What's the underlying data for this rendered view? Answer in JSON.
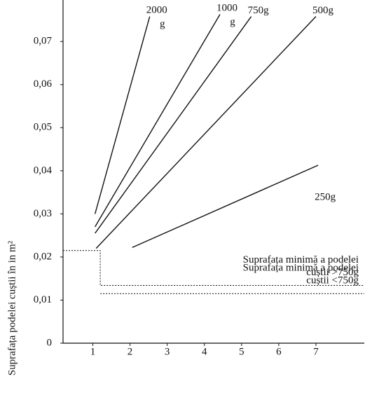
{
  "chart_data": {
    "type": "line",
    "y_label": "Suprafața podelei cuștii în in m²",
    "xlim": [
      0.2,
      8.3
    ],
    "xticks": [
      1,
      2,
      3,
      4,
      5,
      6,
      7
    ],
    "ylim": [
      0,
      0.078
    ],
    "yticks": [
      {
        "value": 0,
        "label": "0"
      },
      {
        "value": 0.01,
        "label": "0,01"
      },
      {
        "value": 0.02,
        "label": "0,02"
      },
      {
        "value": 0.03,
        "label": "0,03"
      },
      {
        "value": 0.04,
        "label": "0,04"
      },
      {
        "value": 0.05,
        "label": "0,05"
      },
      {
        "value": 0.06,
        "label": "0,06"
      },
      {
        "value": 0.07,
        "label": "0,07"
      }
    ],
    "color": "#111111",
    "series": [
      {
        "name": "2000 g",
        "x": [
          1.06,
          2.53
        ],
        "y": [
          0.03,
          0.0758
        ]
      },
      {
        "name": "1000 g",
        "x": [
          1.06,
          4.42
        ],
        "y": [
          0.027,
          0.0763
        ]
      },
      {
        "name": "750g",
        "x": [
          1.06,
          5.26
        ],
        "y": [
          0.0255,
          0.0758
        ]
      },
      {
        "name": "500g",
        "x": [
          1.09,
          7.0
        ],
        "y": [
          0.022,
          0.0758
        ]
      },
      {
        "name": "250g",
        "x": [
          2.06,
          7.06
        ],
        "y": [
          0.0222,
          0.0413
        ]
      }
    ],
    "reference_lines": [
      {
        "x": [
          0.2,
          1.2,
          1.2,
          8.3
        ],
        "y": [
          0.0215,
          0.0215,
          0.0134,
          0.0134
        ],
        "text": [
          "Suprafața minimă a podelei",
          "cuștii >750g"
        ]
      },
      {
        "x": [
          1.2,
          8.3
        ],
        "y": [
          0.0115,
          0.0115
        ],
        "text": [
          "Suprafața minimă a podelei",
          "cuștii <750g"
        ]
      }
    ]
  }
}
